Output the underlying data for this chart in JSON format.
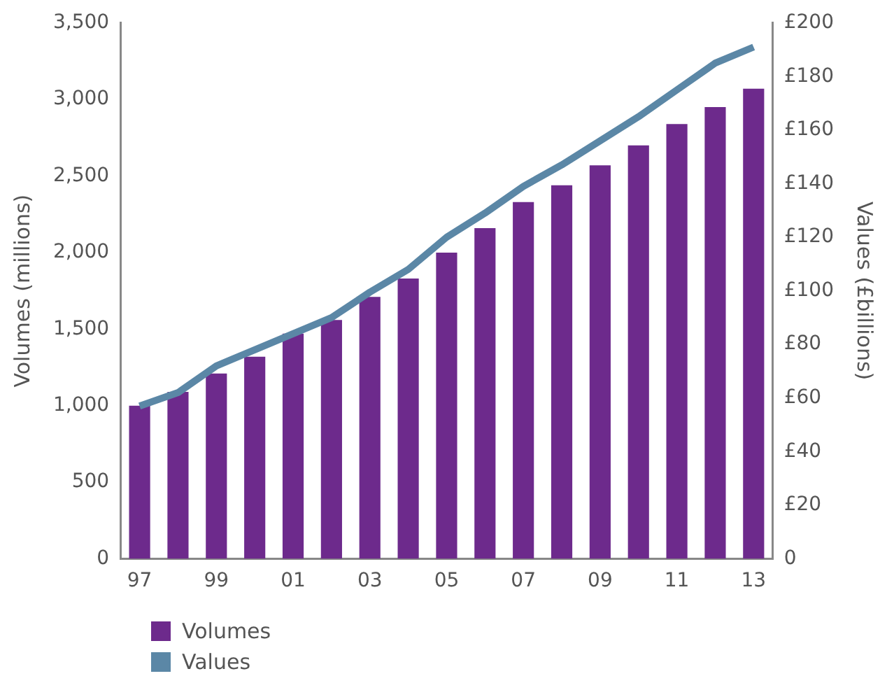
{
  "chart_data": {
    "type": "bar",
    "xlabel": null,
    "ylabel": "Volumes (millions)",
    "y2label": "Values (£billions)",
    "categories": [
      "97",
      null,
      "99",
      null,
      "01",
      null,
      "03",
      null,
      "05",
      null,
      "07",
      null,
      "09",
      null,
      "11",
      null,
      "13"
    ],
    "series": [
      {
        "name": "Volumes",
        "color": "#6d2a8c",
        "values": [
          1000,
          1090,
          1210,
          1320,
          1470,
          1560,
          1710,
          1830,
          2000,
          2160,
          2330,
          2440,
          2570,
          2700,
          2840,
          2950,
          3070
        ]
      },
      {
        "name": "Values",
        "type": "line",
        "axis": "y2",
        "color": "#5b87a6",
        "values": [
          57,
          62,
          72,
          78,
          84,
          90,
          99.5,
          108,
          120,
          129,
          139,
          147,
          156,
          165,
          175,
          185,
          191
        ]
      }
    ],
    "ylim": [
      0,
      3500
    ],
    "yticks": [
      0,
      {
        "value": 500,
        "label": "500"
      },
      {
        "value": 1000,
        "label": "1,000"
      },
      {
        "value": 1500,
        "label": "1,500"
      },
      {
        "value": 2000,
        "label": "2,000"
      },
      {
        "value": 2500,
        "label": "2,500"
      },
      {
        "value": 3000,
        "label": "3,000"
      },
      {
        "value": 3500,
        "label": "3,500"
      }
    ],
    "y2lim": [
      0,
      200
    ],
    "y2ticks": [
      0,
      {
        "value": 20,
        "label": "£20"
      },
      {
        "value": 40,
        "label": "£40"
      },
      {
        "value": 60,
        "label": "£60"
      },
      {
        "value": 80,
        "label": "£80"
      },
      {
        "value": 100,
        "label": "£100"
      },
      {
        "value": 120,
        "label": "£120"
      },
      {
        "value": 140,
        "label": "£140"
      },
      {
        "value": 160,
        "label": "£160"
      },
      {
        "value": 180,
        "label": "£180"
      },
      {
        "value": 200,
        "label": "£200"
      }
    ],
    "grid": false,
    "legend": "bottom left"
  }
}
